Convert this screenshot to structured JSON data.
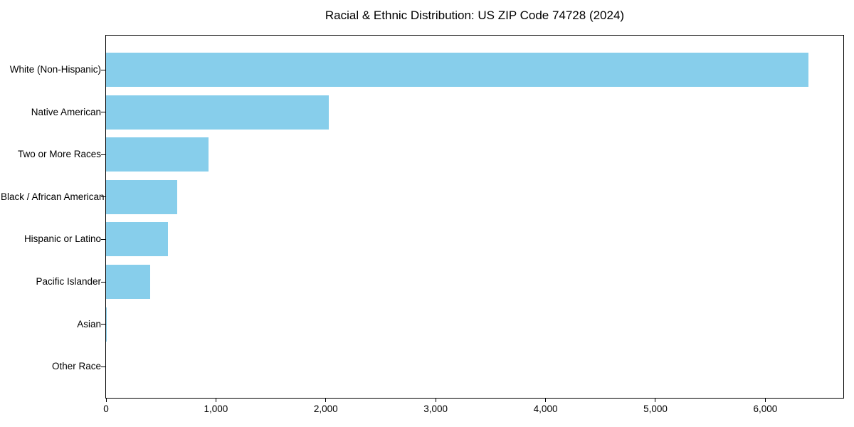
{
  "page": {
    "background_color": "#ffffff"
  },
  "chart_data": {
    "type": "bar",
    "orientation": "horizontal",
    "title": "Racial & Ethnic Distribution: US ZIP Code 74728 (2024)",
    "categories": [
      "White (Non-Hispanic)",
      "Native American",
      "Two or More Races",
      "Black / African American",
      "Hispanic or Latino",
      "Pacific Islander",
      "Asian",
      "Other Race"
    ],
    "values": [
      6390,
      2030,
      935,
      650,
      565,
      400,
      8,
      0
    ],
    "bar_color": "#87CEEB",
    "axis_color": "#000000",
    "text_color": "#000000",
    "xlabel": "",
    "ylabel": "",
    "xlim": [
      0,
      6710
    ],
    "x_ticks": [
      0,
      1000,
      2000,
      3000,
      4000,
      5000,
      6000
    ],
    "x_tick_labels": [
      "0",
      "1,000",
      "2,000",
      "3,000",
      "4,000",
      "5,000",
      "6,000"
    ],
    "grid": false,
    "legend": "none"
  }
}
